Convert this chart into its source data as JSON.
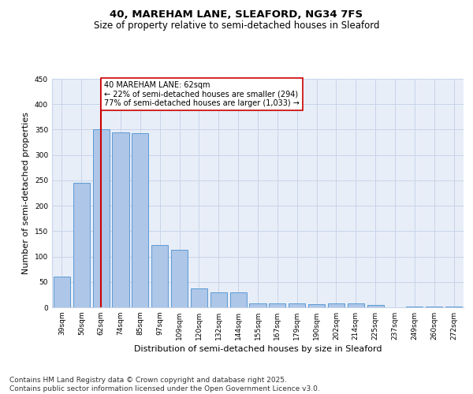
{
  "title1": "40, MAREHAM LANE, SLEAFORD, NG34 7FS",
  "title2": "Size of property relative to semi-detached houses in Sleaford",
  "xlabel": "Distribution of semi-detached houses by size in Sleaford",
  "ylabel": "Number of semi-detached properties",
  "categories": [
    "39sqm",
    "50sqm",
    "62sqm",
    "74sqm",
    "85sqm",
    "97sqm",
    "109sqm",
    "120sqm",
    "132sqm",
    "144sqm",
    "155sqm",
    "167sqm",
    "179sqm",
    "190sqm",
    "202sqm",
    "214sqm",
    "225sqm",
    "237sqm",
    "249sqm",
    "260sqm",
    "272sqm"
  ],
  "values": [
    60,
    245,
    350,
    345,
    343,
    122,
    113,
    38,
    30,
    30,
    8,
    7,
    7,
    6,
    7,
    7,
    5,
    0,
    2,
    2,
    2
  ],
  "bar_color": "#aec6e8",
  "bar_edge_color": "#5b9bd5",
  "vline_x": 2,
  "vline_color": "#cc0000",
  "annotation_line1": "40 MAREHAM LANE: 62sqm",
  "annotation_line2": "← 22% of semi-detached houses are smaller (294)",
  "annotation_line3": "77% of semi-detached houses are larger (1,033) →",
  "annotation_box_color": "#ffffff",
  "annotation_box_edge": "#cc0000",
  "ylim": [
    0,
    450
  ],
  "yticks": [
    0,
    50,
    100,
    150,
    200,
    250,
    300,
    350,
    400,
    450
  ],
  "grid_color": "#c8d4e8",
  "bg_color": "#e8eef8",
  "footer": "Contains HM Land Registry data © Crown copyright and database right 2025.\nContains public sector information licensed under the Open Government Licence v3.0.",
  "title_fontsize": 9.5,
  "subtitle_fontsize": 8.5,
  "xlabel_fontsize": 8,
  "ylabel_fontsize": 8,
  "tick_fontsize": 6.5,
  "annot_fontsize": 7,
  "footer_fontsize": 6.5
}
